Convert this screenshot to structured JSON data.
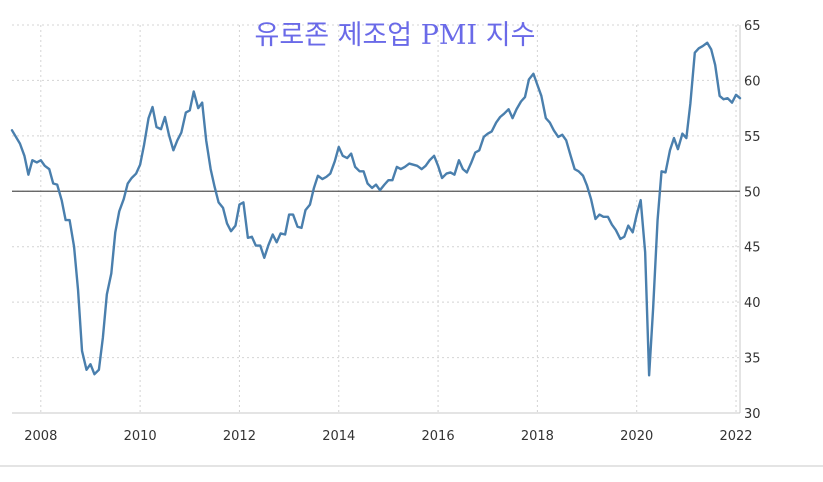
{
  "chart_data": {
    "type": "line",
    "title": "유로존 제조업 PMI 지수",
    "xlabel": "",
    "ylabel": "",
    "xlim": [
      2007.42,
      2022.08
    ],
    "ylim": [
      30,
      65
    ],
    "x_ticks": [
      "2008",
      "2010",
      "2012",
      "2014",
      "2016",
      "2018",
      "2020",
      "2022"
    ],
    "y_ticks": [
      "30",
      "35",
      "40",
      "45",
      "50",
      "55",
      "60",
      "65"
    ],
    "y_axis_position": "right",
    "grid": true,
    "legend": "none",
    "reference_line": 50,
    "colors": {
      "series": "#4a7fad",
      "reference": "#555555",
      "grid": "#d4d4d4",
      "title": "#6a6ae8"
    },
    "series": [
      {
        "x": [
          2007.42,
          2007.58,
          2007.67,
          2007.75,
          2007.83,
          2007.92,
          2008.0,
          2008.08,
          2008.17,
          2008.25,
          2008.33,
          2008.42,
          2008.5,
          2008.58,
          2008.67,
          2008.75,
          2008.83,
          2008.92,
          2009.0,
          2009.08,
          2009.17,
          2009.25,
          2009.33,
          2009.42,
          2009.5,
          2009.58,
          2009.67,
          2009.75,
          2009.83,
          2009.92,
          2010.0,
          2010.08,
          2010.17,
          2010.25,
          2010.33,
          2010.42,
          2010.5,
          2010.58,
          2010.67,
          2010.75,
          2010.83,
          2010.92,
          2011.0,
          2011.08,
          2011.17,
          2011.25,
          2011.33,
          2011.42,
          2011.5,
          2011.58,
          2011.67,
          2011.75,
          2011.83,
          2011.92,
          2012.0,
          2012.08,
          2012.17,
          2012.25,
          2012.33,
          2012.42,
          2012.5,
          2012.58,
          2012.67,
          2012.75,
          2012.83,
          2012.92,
          2013.0,
          2013.08,
          2013.17,
          2013.25,
          2013.33,
          2013.42,
          2013.5,
          2013.58,
          2013.67,
          2013.75,
          2013.83,
          2013.92,
          2014.0,
          2014.08,
          2014.17,
          2014.25,
          2014.33,
          2014.42,
          2014.5,
          2014.58,
          2014.67,
          2014.75,
          2014.83,
          2014.92,
          2015.0,
          2015.08,
          2015.17,
          2015.25,
          2015.33,
          2015.42,
          2015.5,
          2015.58,
          2015.67,
          2015.75,
          2015.83,
          2015.92,
          2016.0,
          2016.08,
          2016.17,
          2016.25,
          2016.33,
          2016.42,
          2016.5,
          2016.58,
          2016.67,
          2016.75,
          2016.83,
          2016.92,
          2017.0,
          2017.08,
          2017.17,
          2017.25,
          2017.33,
          2017.42,
          2017.5,
          2017.58,
          2017.67,
          2017.75,
          2017.83,
          2017.92,
          2018.0,
          2018.08,
          2018.17,
          2018.25,
          2018.33,
          2018.42,
          2018.5,
          2018.58,
          2018.67,
          2018.75,
          2018.83,
          2018.92,
          2019.0,
          2019.08,
          2019.17,
          2019.25,
          2019.33,
          2019.42,
          2019.5,
          2019.58,
          2019.67,
          2019.75,
          2019.83,
          2019.92,
          2020.0,
          2020.08,
          2020.17,
          2020.25,
          2020.33,
          2020.42,
          2020.5,
          2020.58,
          2020.67,
          2020.75,
          2020.83,
          2020.92,
          2021.0,
          2021.08,
          2021.17,
          2021.25,
          2021.33,
          2021.42,
          2021.5,
          2021.58,
          2021.67,
          2021.75,
          2021.83,
          2021.92,
          2022.0,
          2022.08
        ],
        "values": [
          55.5,
          54.3,
          53.2,
          51.5,
          52.8,
          52.6,
          52.8,
          52.3,
          52.0,
          50.7,
          50.6,
          49.2,
          47.4,
          47.4,
          45.0,
          41.1,
          35.6,
          33.9,
          34.4,
          33.5,
          33.9,
          36.8,
          40.7,
          42.6,
          46.3,
          48.2,
          49.3,
          50.7,
          51.2,
          51.6,
          52.4,
          54.2,
          56.6,
          57.6,
          55.8,
          55.6,
          56.7,
          55.1,
          53.7,
          54.6,
          55.3,
          57.1,
          57.3,
          59.0,
          57.5,
          58.0,
          54.6,
          52.0,
          50.4,
          49.0,
          48.5,
          47.1,
          46.4,
          46.9,
          48.8,
          49.0,
          45.8,
          45.9,
          45.1,
          45.1,
          44.0,
          45.1,
          46.1,
          45.4,
          46.2,
          46.1,
          47.9,
          47.9,
          46.8,
          46.7,
          48.3,
          48.8,
          50.3,
          51.4,
          51.1,
          51.3,
          51.6,
          52.7,
          54.0,
          53.2,
          53.0,
          53.4,
          52.2,
          51.8,
          51.8,
          50.7,
          50.3,
          50.6,
          50.1,
          50.6,
          51.0,
          51.0,
          52.2,
          52.0,
          52.2,
          52.5,
          52.4,
          52.3,
          52.0,
          52.3,
          52.8,
          53.2,
          52.3,
          51.2,
          51.6,
          51.7,
          51.5,
          52.8,
          52.0,
          51.7,
          52.6,
          53.5,
          53.7,
          54.9,
          55.2,
          55.4,
          56.2,
          56.7,
          57.0,
          57.4,
          56.6,
          57.4,
          58.1,
          58.5,
          60.1,
          60.6,
          59.6,
          58.6,
          56.6,
          56.2,
          55.5,
          54.9,
          55.1,
          54.6,
          53.2,
          52.0,
          51.8,
          51.4,
          50.5,
          49.3,
          47.5,
          47.9,
          47.7,
          47.7,
          47.0,
          46.5,
          45.7,
          45.9,
          46.9,
          46.3,
          47.9,
          49.2,
          44.5,
          33.4,
          39.4,
          47.4,
          51.8,
          51.7,
          53.7,
          54.8,
          53.8,
          55.2,
          54.8,
          57.9,
          62.5,
          62.9,
          63.1,
          63.4,
          62.8,
          61.4,
          58.6,
          58.3,
          58.4,
          58.0,
          58.7,
          58.4
        ]
      }
    ]
  }
}
